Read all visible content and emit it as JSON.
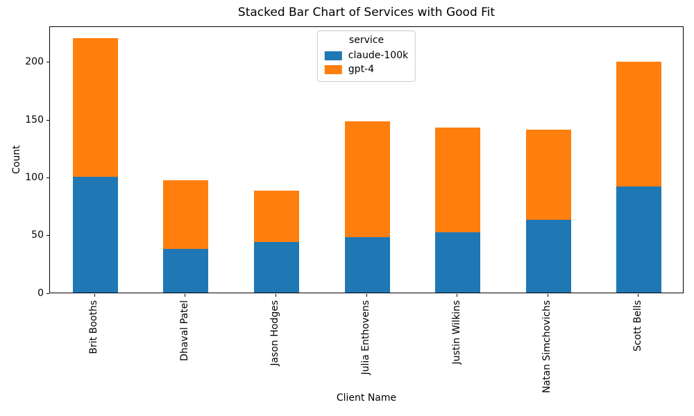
{
  "chart_data": {
    "type": "bar",
    "stacked": true,
    "title": "Stacked Bar Chart of Services with Good Fit",
    "xlabel": "Client Name",
    "ylabel": "Count",
    "legend_title": "service",
    "legend_position": "upper center",
    "grid": false,
    "categories": [
      "Brit Booths",
      "Dhaval Patel",
      "Jason Hodges",
      "Julia Enthovens",
      "Justin Wilkins",
      "Natan Simchovichs",
      "Scott Bells"
    ],
    "series": [
      {
        "name": "claude-100k",
        "color": "#1f77b4",
        "values": [
          100,
          38,
          44,
          48,
          52,
          63,
          92
        ]
      },
      {
        "name": "gpt-4",
        "color": "#ff7f0e",
        "values": [
          120,
          59,
          44,
          100,
          91,
          78,
          108
        ]
      }
    ],
    "totals": [
      220,
      97,
      88,
      148,
      143,
      141,
      200
    ],
    "yticks": [
      0,
      50,
      100,
      150,
      200
    ],
    "ylim": [
      0,
      231
    ]
  }
}
